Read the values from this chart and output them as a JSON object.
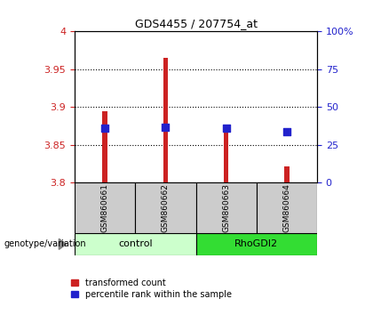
{
  "title": "GDS4455 / 207754_at",
  "samples": [
    "GSM860661",
    "GSM860662",
    "GSM860663",
    "GSM860664"
  ],
  "red_values": [
    3.895,
    3.965,
    3.872,
    3.822
  ],
  "blue_values": [
    3.872,
    3.873,
    3.872,
    3.867
  ],
  "ymin": 3.8,
  "ymax": 4.0,
  "yticks": [
    3.8,
    3.85,
    3.9,
    3.95,
    4.0
  ],
  "ytick_labels": [
    "3.8",
    "3.85",
    "3.9",
    "3.95",
    "4"
  ],
  "right_ytick_pcts": [
    0,
    25,
    50,
    75,
    100
  ],
  "right_ytick_labels": [
    "0",
    "25",
    "50",
    "75",
    "100%"
  ],
  "left_color": "#cc2222",
  "right_color": "#2222cc",
  "control_color": "#ccffcc",
  "rhogdi2_color": "#33dd33",
  "sample_bg_color": "#cccccc",
  "group_label": "genotype/variation",
  "legend_red": "transformed count",
  "legend_blue": "percentile rank within the sample",
  "bar_width": 0.08,
  "blue_marker_size": 30,
  "grid_dotted_vals": [
    3.85,
    3.9,
    3.95
  ]
}
